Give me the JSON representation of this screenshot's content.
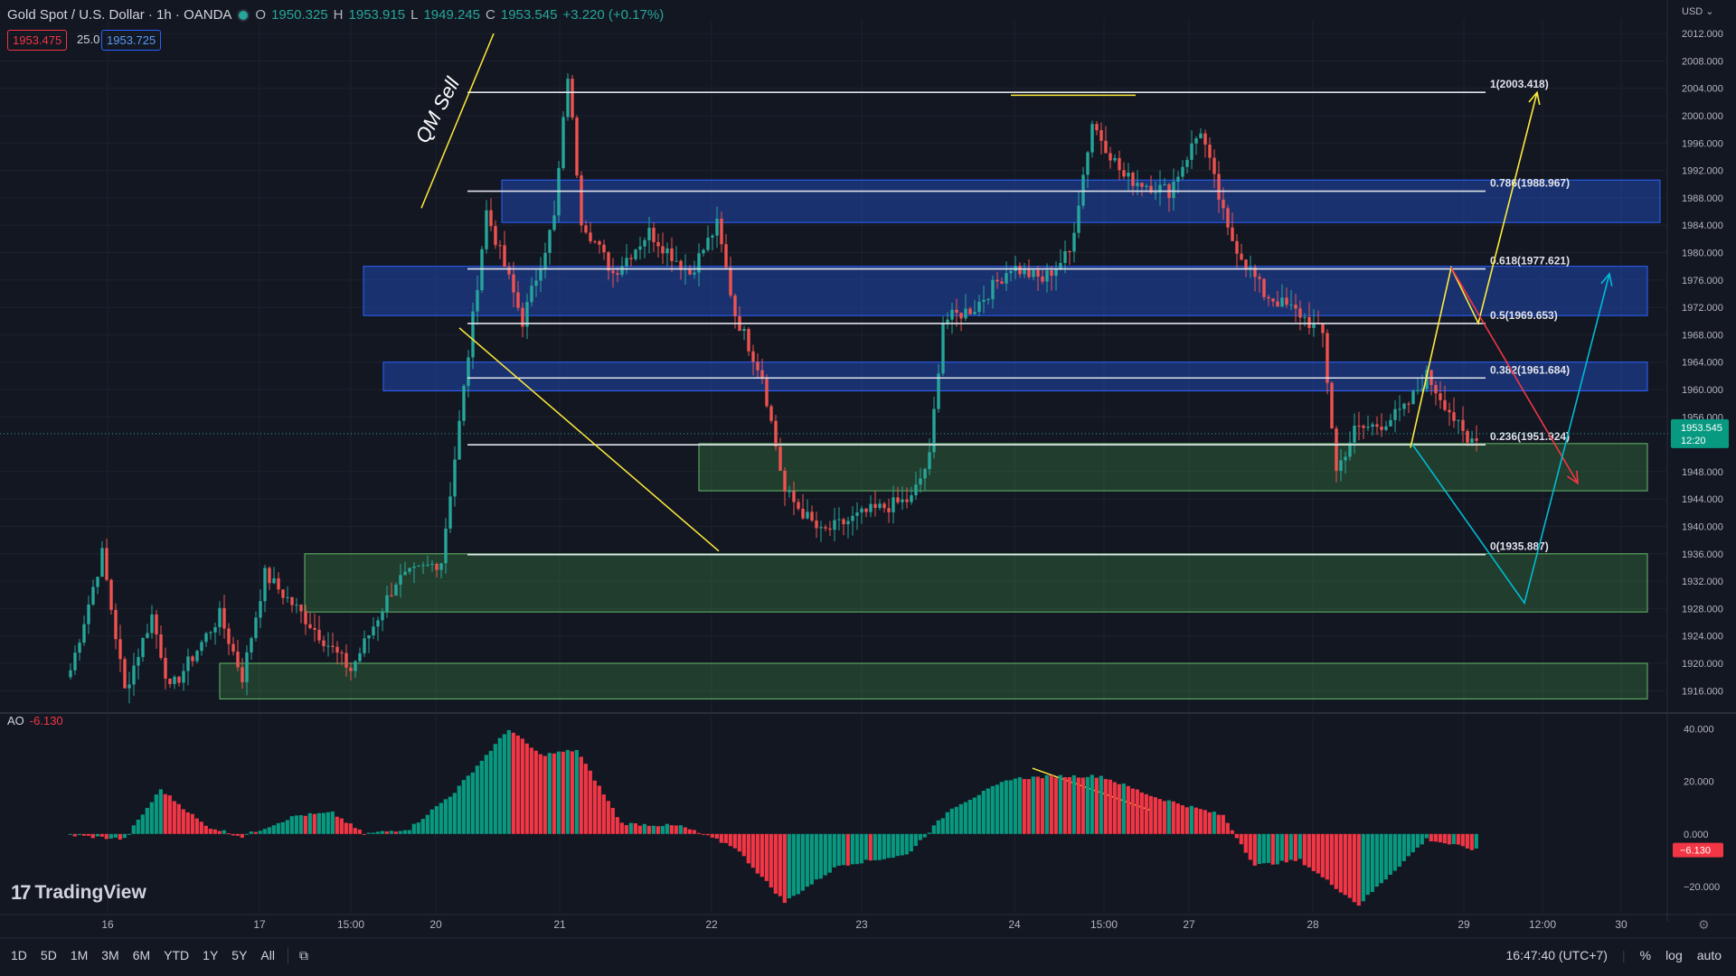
{
  "header": {
    "title": "Gold Spot / U.S. Dollar · 1h · OANDA",
    "o_label": "O",
    "o_value": "1950.325",
    "h_label": "H",
    "h_value": "1953.915",
    "l_label": "L",
    "l_value": "1949.245",
    "c_label": "C",
    "c_value": "1953.545",
    "change": "+3.220 (+0.17%)"
  },
  "quote": {
    "bid": "1953.475",
    "spread": "25.0",
    "ask": "1953.725"
  },
  "currency_label": "USD",
  "price_axis": [
    "2012.000",
    "2008.000",
    "2004.000",
    "2000.000",
    "1996.000",
    "1992.000",
    "1988.000",
    "1984.000",
    "1980.000",
    "1976.000",
    "1972.000",
    "1968.000",
    "1964.000",
    "1960.000",
    "1956.000",
    "1948.000",
    "1944.000",
    "1940.000",
    "1936.000",
    "1932.000",
    "1928.000",
    "1924.000",
    "1920.000",
    "1916.000"
  ],
  "last_price": {
    "value": "1953.545",
    "countdown": "12:20"
  },
  "indicator": {
    "name": "AO",
    "value": "-6.130",
    "axis": [
      "40.000",
      "20.000",
      "0.000",
      "−20.000"
    ],
    "last_label": "−6.130"
  },
  "time_axis": [
    "16",
    "17",
    "15:00",
    "20",
    "21",
    "22",
    "23",
    "24",
    "15:00",
    "27",
    "28",
    "29",
    "12:00",
    "30"
  ],
  "annotations": {
    "qm_text": "QM Sell"
  },
  "fib_levels": [
    {
      "label": "1(2003.418)",
      "price": 2003.418
    },
    {
      "label": "0.786(1988.967)",
      "price": 1988.967
    },
    {
      "label": "0.618(1977.621)",
      "price": 1977.621
    },
    {
      "label": "0.5(1969.653)",
      "price": 1969.653
    },
    {
      "label": "0.382(1961.684)",
      "price": 1961.684
    },
    {
      "label": "0.236(1951.924)",
      "price": 1951.924
    },
    {
      "label": "0(1935.887)",
      "price": 1935.887
    }
  ],
  "zones": [
    {
      "kind": "supply",
      "top": 1990.6,
      "bottom": 1984.4
    },
    {
      "kind": "supply",
      "top": 1978.0,
      "bottom": 1970.8
    },
    {
      "kind": "supply",
      "top": 1964.0,
      "bottom": 1959.8
    },
    {
      "kind": "demand",
      "top": 1952.1,
      "bottom": 1945.2
    },
    {
      "kind": "demand",
      "top": 1936.0,
      "bottom": 1927.5
    },
    {
      "kind": "demand",
      "top": 1920.0,
      "bottom": 1914.8
    }
  ],
  "chart_data": {
    "type": "candlestick",
    "title": "Gold Spot / U.S. Dollar · 1h · OANDA",
    "symbol": "XAUUSD",
    "interval": "1h",
    "ylim": [
      1913.0,
      2014.0
    ],
    "price_path_anchors": [
      {
        "x": 0,
        "price": 1919
      },
      {
        "x": 7,
        "price": 1936
      },
      {
        "x": 12,
        "price": 1916
      },
      {
        "x": 18,
        "price": 1927
      },
      {
        "x": 22,
        "price": 1916
      },
      {
        "x": 28,
        "price": 1922
      },
      {
        "x": 33,
        "price": 1927
      },
      {
        "x": 38,
        "price": 1918
      },
      {
        "x": 43,
        "price": 1933
      },
      {
        "x": 50,
        "price": 1928
      },
      {
        "x": 62,
        "price": 1919
      },
      {
        "x": 72,
        "price": 1932
      },
      {
        "x": 82,
        "price": 1935
      },
      {
        "x": 87,
        "price": 1960
      },
      {
        "x": 92,
        "price": 1986
      },
      {
        "x": 100,
        "price": 1970
      },
      {
        "x": 107,
        "price": 1985
      },
      {
        "x": 110,
        "price": 2006
      },
      {
        "x": 113,
        "price": 1985
      },
      {
        "x": 120,
        "price": 1977
      },
      {
        "x": 128,
        "price": 1983
      },
      {
        "x": 137,
        "price": 1977
      },
      {
        "x": 143,
        "price": 1984
      },
      {
        "x": 147,
        "price": 1971
      },
      {
        "x": 153,
        "price": 1962
      },
      {
        "x": 158,
        "price": 1945
      },
      {
        "x": 166,
        "price": 1939
      },
      {
        "x": 176,
        "price": 1942
      },
      {
        "x": 186,
        "price": 1944
      },
      {
        "x": 190,
        "price": 1950
      },
      {
        "x": 193,
        "price": 1970
      },
      {
        "x": 200,
        "price": 1972
      },
      {
        "x": 208,
        "price": 1978
      },
      {
        "x": 215,
        "price": 1976
      },
      {
        "x": 221,
        "price": 1980
      },
      {
        "x": 226,
        "price": 1999
      },
      {
        "x": 233,
        "price": 1991
      },
      {
        "x": 243,
        "price": 1989
      },
      {
        "x": 250,
        "price": 1998
      },
      {
        "x": 256,
        "price": 1983
      },
      {
        "x": 264,
        "price": 1974
      },
      {
        "x": 272,
        "price": 1971
      },
      {
        "x": 277,
        "price": 1968
      },
      {
        "x": 280,
        "price": 1948
      },
      {
        "x": 284,
        "price": 1954
      },
      {
        "x": 290,
        "price": 1955
      },
      {
        "x": 295,
        "price": 1957
      },
      {
        "x": 300,
        "price": 1962
      },
      {
        "x": 305,
        "price": 1957
      },
      {
        "x": 309,
        "price": 1952
      },
      {
        "x": 311,
        "price": 1953.5
      }
    ],
    "ao_histogram_anchors": [
      {
        "x": 0,
        "v": -0.5
      },
      {
        "x": 12,
        "v": -2
      },
      {
        "x": 20,
        "v": 17
      },
      {
        "x": 30,
        "v": 3
      },
      {
        "x": 38,
        "v": -1
      },
      {
        "x": 50,
        "v": 7
      },
      {
        "x": 58,
        "v": 8
      },
      {
        "x": 65,
        "v": 0
      },
      {
        "x": 75,
        "v": 2
      },
      {
        "x": 85,
        "v": 16
      },
      {
        "x": 97,
        "v": 40
      },
      {
        "x": 104,
        "v": 30
      },
      {
        "x": 112,
        "v": 32
      },
      {
        "x": 122,
        "v": 4
      },
      {
        "x": 135,
        "v": 3
      },
      {
        "x": 147,
        "v": -5
      },
      {
        "x": 158,
        "v": -26
      },
      {
        "x": 170,
        "v": -12
      },
      {
        "x": 185,
        "v": -8
      },
      {
        "x": 195,
        "v": 10
      },
      {
        "x": 208,
        "v": 21
      },
      {
        "x": 218,
        "v": 22
      },
      {
        "x": 228,
        "v": 22
      },
      {
        "x": 240,
        "v": 14
      },
      {
        "x": 255,
        "v": 7
      },
      {
        "x": 262,
        "v": -12
      },
      {
        "x": 272,
        "v": -10
      },
      {
        "x": 285,
        "v": -27
      },
      {
        "x": 300,
        "v": -2
      },
      {
        "x": 311,
        "v": -6.13
      }
    ],
    "ao_ylim": [
      -30,
      45
    ],
    "projections": [
      {
        "color": "#ffeb3b",
        "points": [
          [
            1953,
            1951.5
          ],
          [
            1605,
            1977.8
          ],
          [
            1635,
            1969.7
          ],
          [
            1700,
            2003.4
          ]
        ]
      },
      {
        "color": "#f23645",
        "points": [
          [
            1605,
            1977.8
          ],
          [
            1745,
            1946.3
          ]
        ]
      },
      {
        "color": "#00bcd4",
        "points": [
          [
            1562,
            1952
          ],
          [
            1686,
            1928.8
          ],
          [
            1780,
            1976.9
          ]
        ]
      }
    ]
  }
}
